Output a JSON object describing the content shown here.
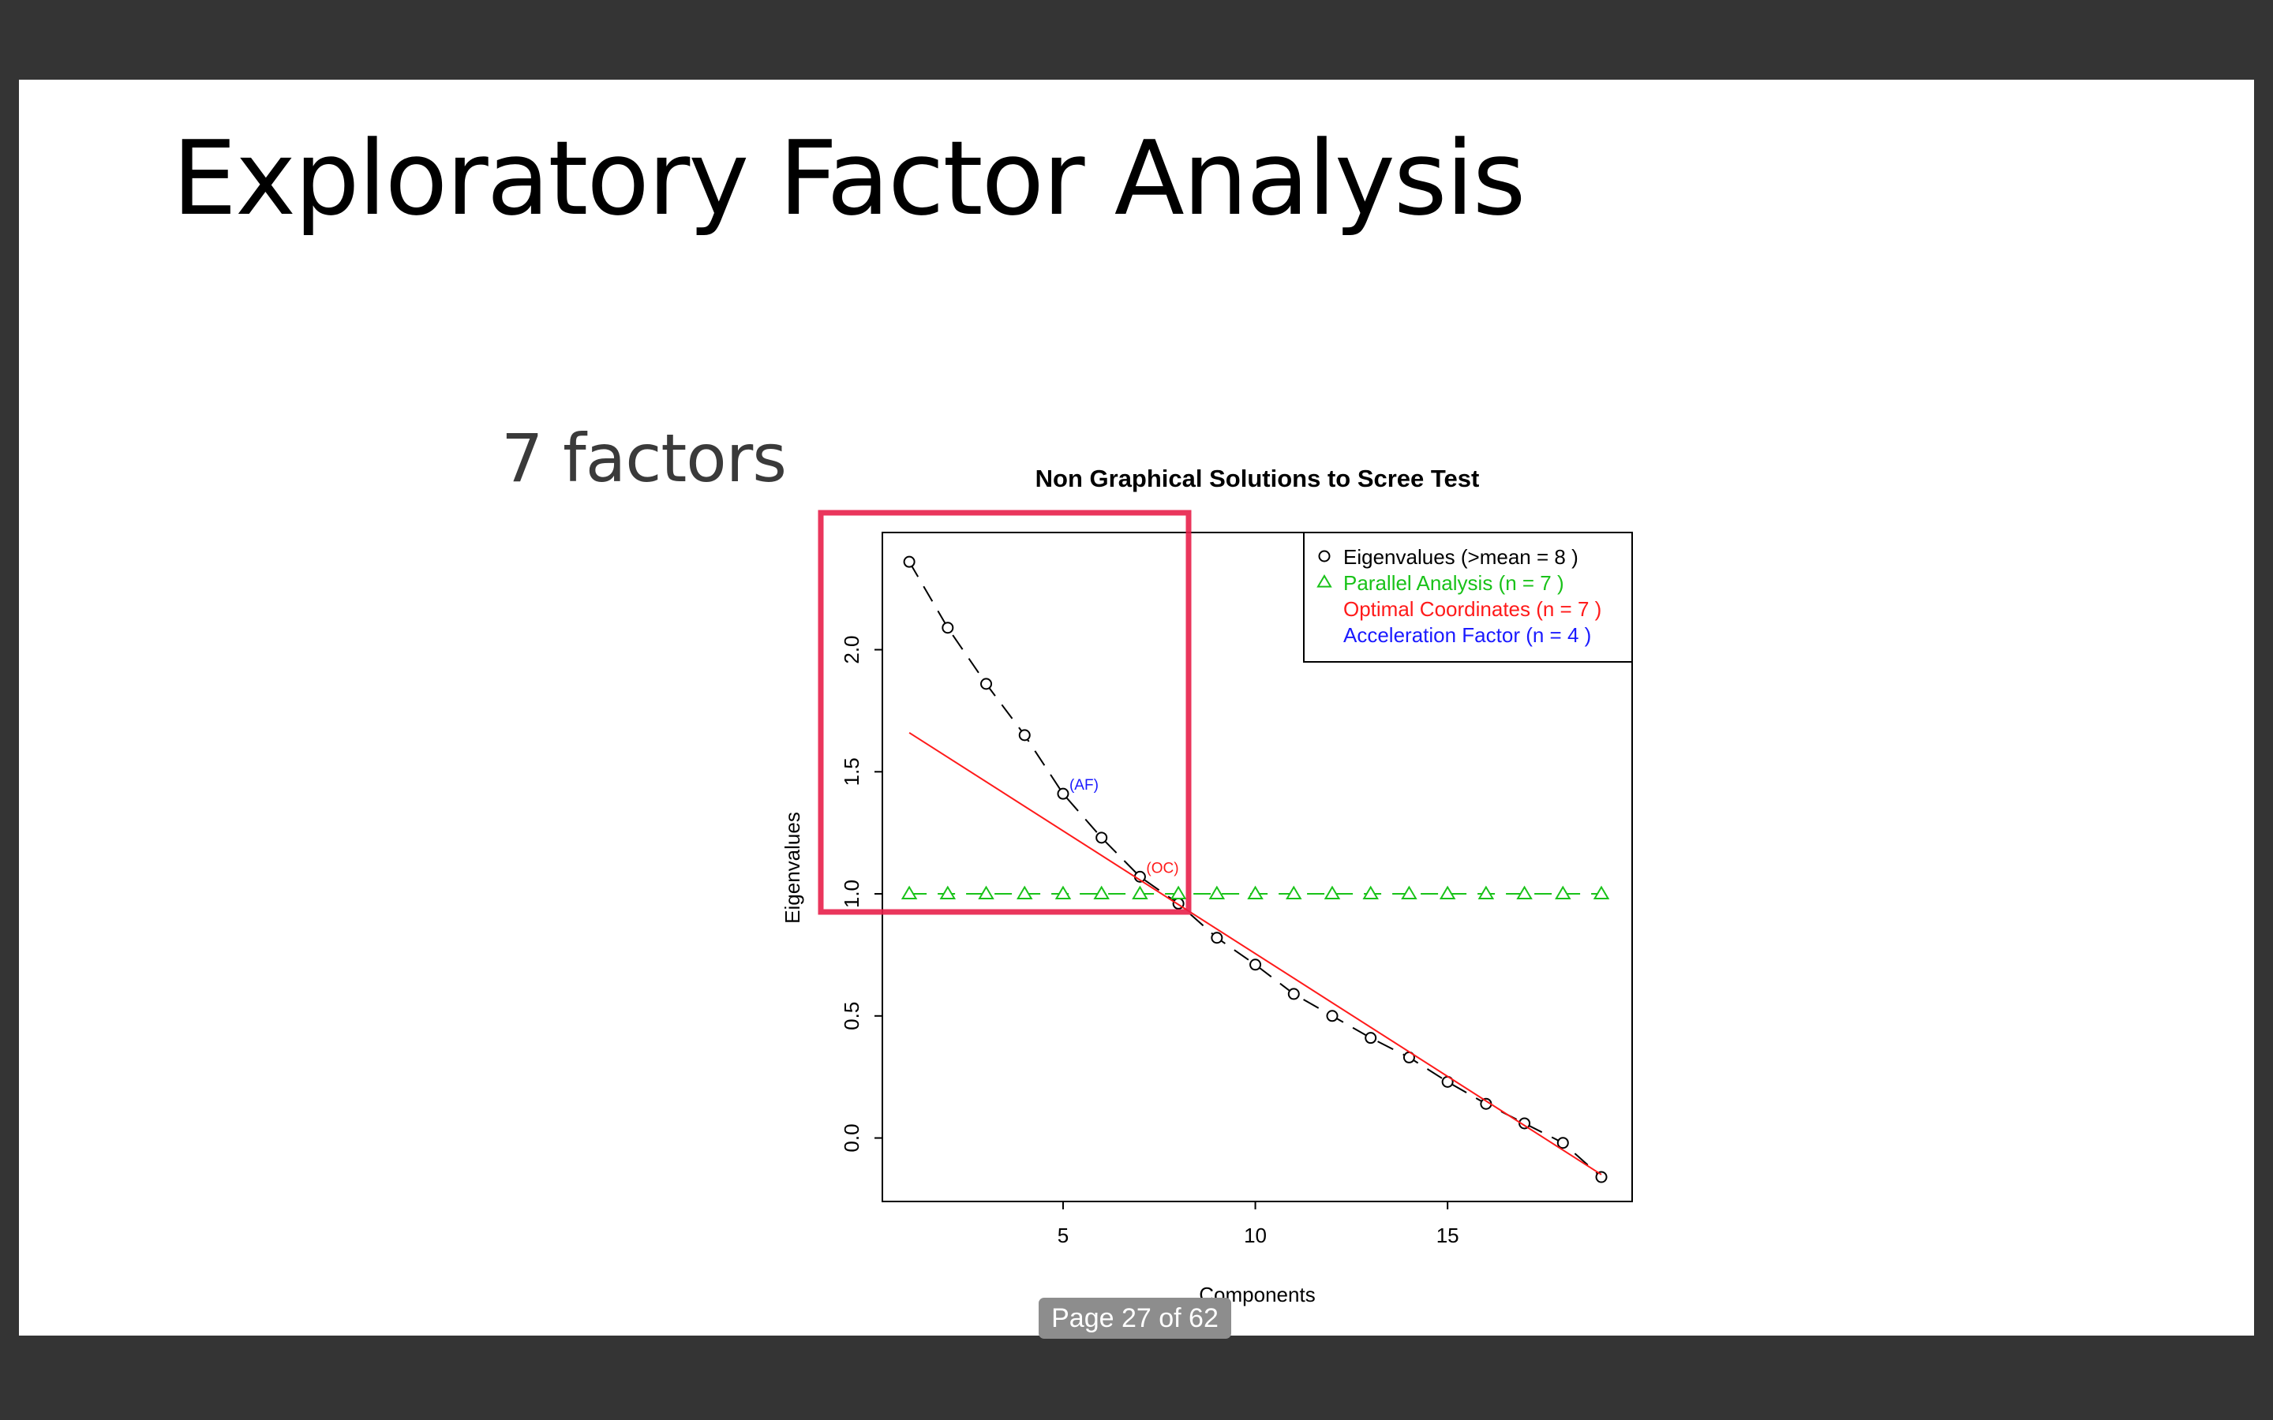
{
  "slide": {
    "title": "Exploratory Factor Analysis",
    "note": "7 factors",
    "note_color": "#3a3a3a",
    "highlight_color": "#e8204a"
  },
  "viewer": {
    "page_indicator": "Page 27 of 62"
  },
  "chart_data": {
    "type": "scatter",
    "title": "Non Graphical Solutions to Scree Test",
    "xlabel": "Components",
    "ylabel": "Eigenvalues",
    "xlim": [
      0.3,
      19.8
    ],
    "ylim": [
      -0.26,
      2.48
    ],
    "x_ticks": [
      5,
      10,
      15
    ],
    "y_ticks": [
      0.0,
      0.5,
      1.0,
      1.5,
      2.0
    ],
    "series": [
      {
        "name": "Eigenvalues (>mean  =  8 )",
        "color": "#000000",
        "marker": "circle",
        "line": "dashed",
        "x": [
          1,
          2,
          3,
          4,
          5,
          6,
          7,
          8,
          9,
          10,
          11,
          12,
          13,
          14,
          15,
          16,
          17,
          18,
          19
        ],
        "values": [
          2.36,
          2.09,
          1.86,
          1.65,
          1.41,
          1.23,
          1.07,
          0.96,
          0.82,
          0.71,
          0.59,
          0.5,
          0.41,
          0.33,
          0.23,
          0.14,
          0.06,
          -0.02,
          -0.16
        ]
      },
      {
        "name": "Parallel Analysis (n =  7 )",
        "color": "#19c219",
        "marker": "triangle",
        "line": "dashed",
        "x": [
          1,
          2,
          3,
          4,
          5,
          6,
          7,
          8,
          9,
          10,
          11,
          12,
          13,
          14,
          15,
          16,
          17,
          18,
          19
        ],
        "values": [
          1.0,
          1.0,
          1.0,
          1.0,
          1.0,
          1.0,
          1.0,
          1.0,
          1.0,
          1.0,
          1.0,
          1.0,
          1.0,
          1.0,
          1.0,
          1.0,
          1.0,
          1.0,
          1.0
        ]
      },
      {
        "name": "Optimal Coordinates (n =  7 )",
        "color": "#ff1a1a",
        "marker": "none",
        "line": "solid",
        "x": [
          1,
          19
        ],
        "values": [
          1.66,
          -0.15
        ]
      },
      {
        "name": "Acceleration Factor (n =  4 )",
        "color": "#1a1aff",
        "marker": "none",
        "line": "none",
        "x": [],
        "values": []
      }
    ],
    "annotations": [
      {
        "text": "(AF)",
        "x": 5,
        "y": 1.41,
        "color": "#1a1aff"
      },
      {
        "text": "(OC)",
        "x": 7,
        "y": 1.07,
        "color": "#ff1a1a"
      }
    ],
    "legend_position": "top-right",
    "grid": false
  }
}
